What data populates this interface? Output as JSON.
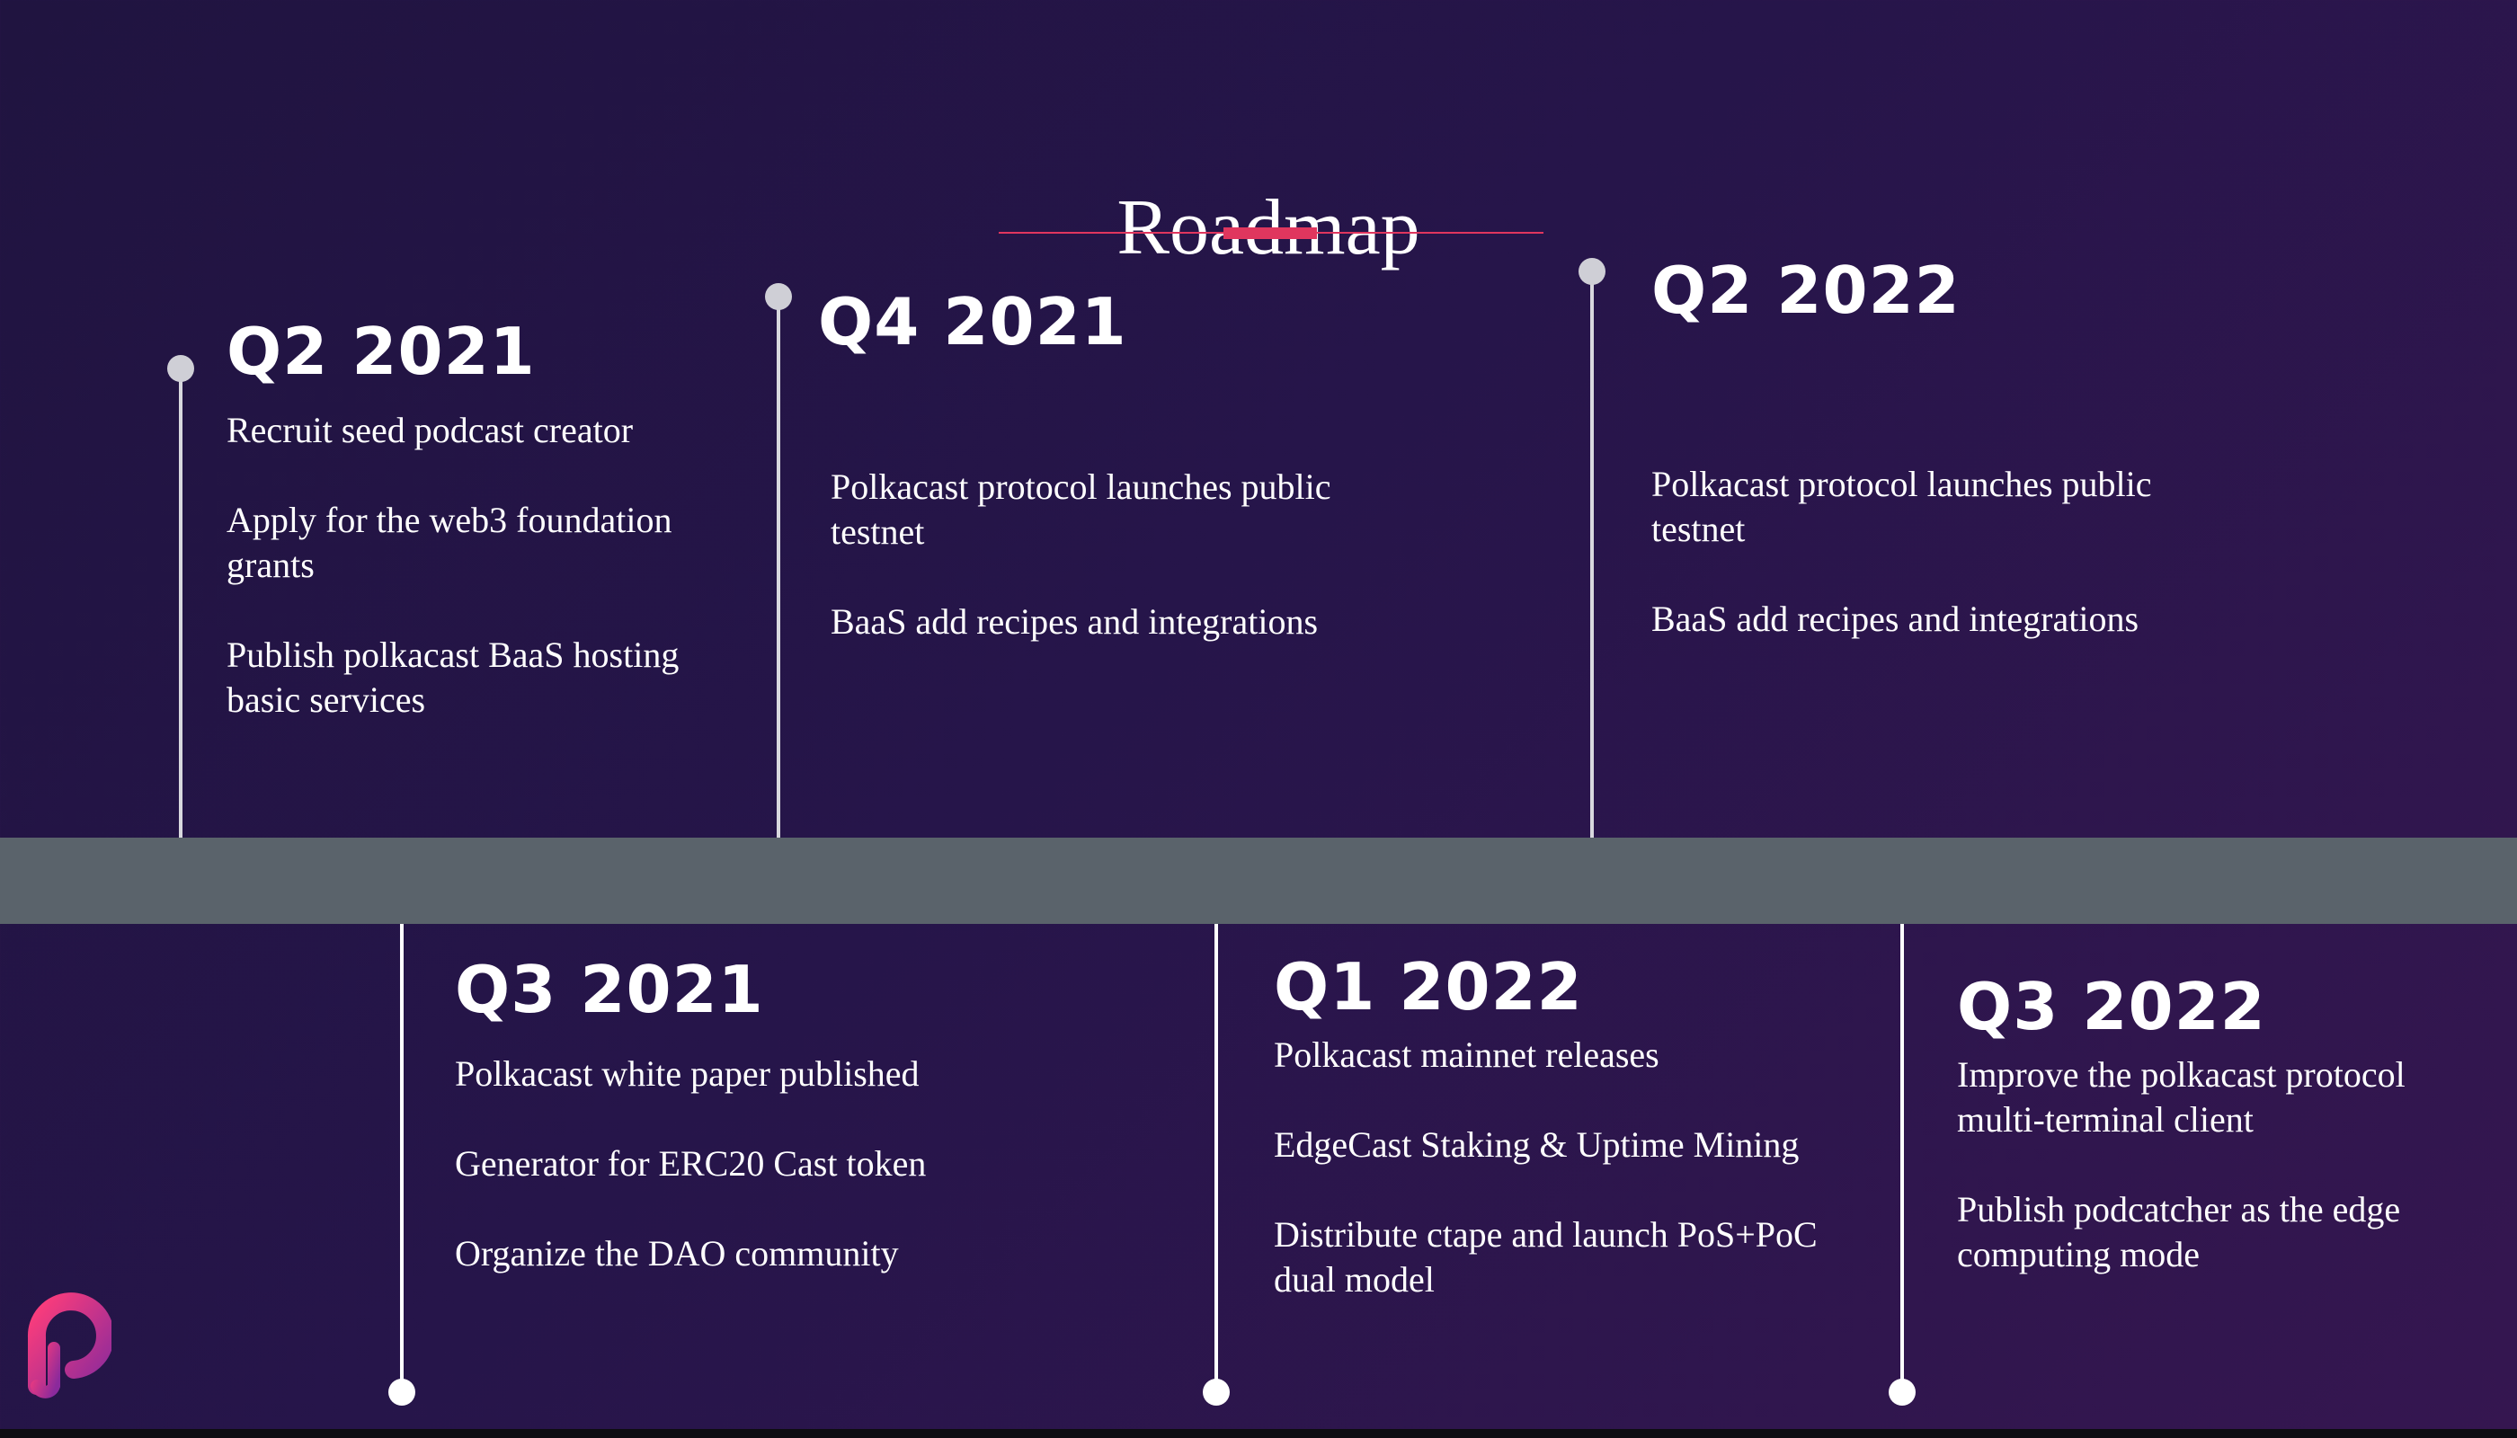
{
  "title": "Roadmap",
  "colors": {
    "background_start": "#201440",
    "background_end": "#351650",
    "accent": "#e0365e",
    "band": "#5a636b",
    "stem": "#d8d8de",
    "text": "#ffffff"
  },
  "logo": {
    "icon": "polkacast-logo-icon"
  },
  "milestones": [
    {
      "quarter": "Q2 2021",
      "items": [
        "Recruit seed podcast creator",
        "Apply for the web3 foundation grants",
        "Publish polkacast BaaS hosting basic services"
      ]
    },
    {
      "quarter": "Q3 2021",
      "items": [
        "Polkacast white paper  published",
        "Generator for ERC20  Cast token",
        "Organize the DAO community"
      ]
    },
    {
      "quarter": "Q4 2021",
      "items": [
        "Polkacast protocol launches public testnet",
        "BaaS add recipes and integrations"
      ]
    },
    {
      "quarter": "Q1 2022",
      "items": [
        "Polkacast mainnet releases",
        "EdgeCast Staking & Uptime Mining",
        "Distribute ctape and launch PoS+PoC dual model"
      ]
    },
    {
      "quarter": "Q2 2022",
      "items": [
        "Polkacast protocol launches public testnet",
        "BaaS add recipes and integrations"
      ]
    },
    {
      "quarter": "Q3 2022",
      "items": [
        "Improve the polkacast protocol multi-terminal client",
        "Publish podcatcher as the edge computing mode"
      ]
    }
  ]
}
